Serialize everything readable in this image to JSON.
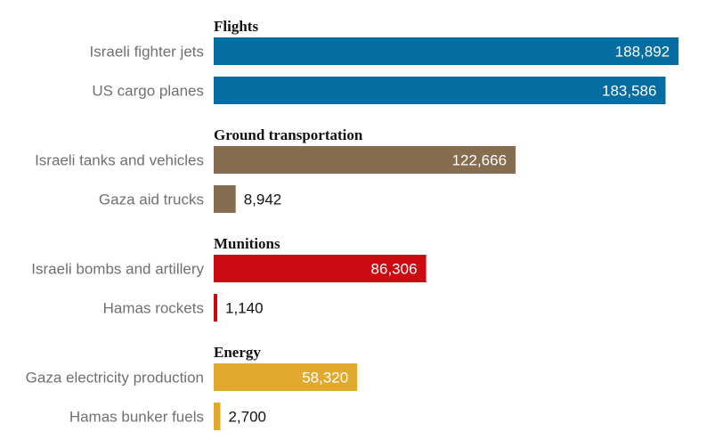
{
  "chart_data": {
    "type": "bar",
    "orientation": "horizontal",
    "xlim": [
      0,
      195000
    ],
    "groups": [
      {
        "title": "Flights",
        "color": "#056da1",
        "items": [
          {
            "label": "Israeli fighter jets",
            "value": 188892,
            "value_label": "188,892"
          },
          {
            "label": "US cargo planes",
            "value": 183586,
            "value_label": "183,586"
          }
        ]
      },
      {
        "title": "Ground transportation",
        "color": "#866d50",
        "items": [
          {
            "label": "Israeli tanks and vehicles",
            "value": 122666,
            "value_label": "122,666"
          },
          {
            "label": "Gaza aid trucks",
            "value": 8942,
            "value_label": "8,942"
          }
        ]
      },
      {
        "title": "Munitions",
        "color": "#cc0a11",
        "items": [
          {
            "label": "Israeli bombs and artillery",
            "value": 86306,
            "value_label": "86,306"
          },
          {
            "label": "Hamas rockets",
            "value": 1140,
            "value_label": "1,140"
          }
        ]
      },
      {
        "title": "Energy",
        "color": "#e2aa2c",
        "items": [
          {
            "label": "Gaza electricity production",
            "value": 58320,
            "value_label": "58,320"
          },
          {
            "label": "Hamas bunker fuels",
            "value": 2700,
            "value_label": "2,700"
          }
        ]
      }
    ]
  }
}
